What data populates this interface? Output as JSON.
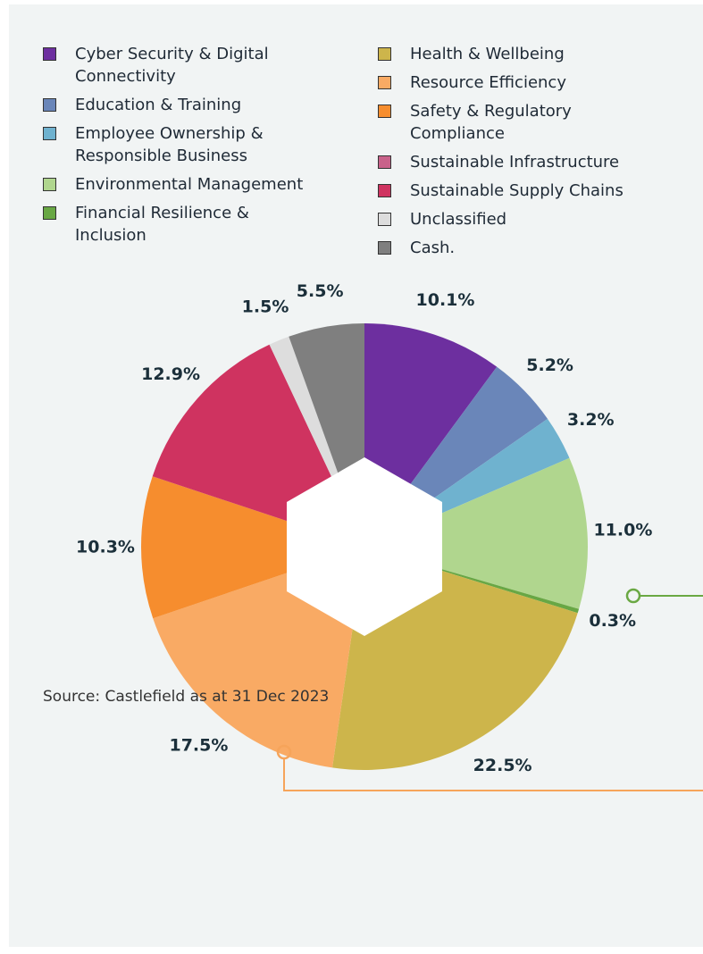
{
  "chart_data": {
    "type": "pie",
    "categories": [
      "Cyber Security & Digital Connectivity",
      "Education & Training",
      "Employee Ownership & Responsible Business",
      "Environmental Management",
      "Financial Resilience & Inclusion",
      "Health & Wellbeing",
      "Resource Efficiency",
      "Safety & Regulatory Compliance",
      "Sustainable Infrastructure",
      "Sustainable Supply Chains",
      "Unclassified",
      "Cash."
    ],
    "values": [
      10.1,
      5.2,
      3.2,
      11.0,
      0.3,
      22.5,
      17.5,
      10.3,
      null,
      12.9,
      1.5,
      5.5
    ],
    "value_labels": [
      "10.1%",
      "5.2%",
      "3.2%",
      "11.0%",
      "0.3%",
      "22.5%",
      "17.5%",
      "10.3%",
      null,
      "12.9%",
      "1.5%",
      "5.5%"
    ],
    "colors": [
      "#6d2f9f",
      "#6a86b9",
      "#6fb2cf",
      "#b0d68e",
      "#68a744",
      "#cdb54b",
      "#f9aa64",
      "#f68d2e",
      "#c9628a",
      "#cf3360",
      "#dddddd",
      "#7f7f7f"
    ],
    "source": "Source: Castlefield as at 31 Dec 2023"
  }
}
